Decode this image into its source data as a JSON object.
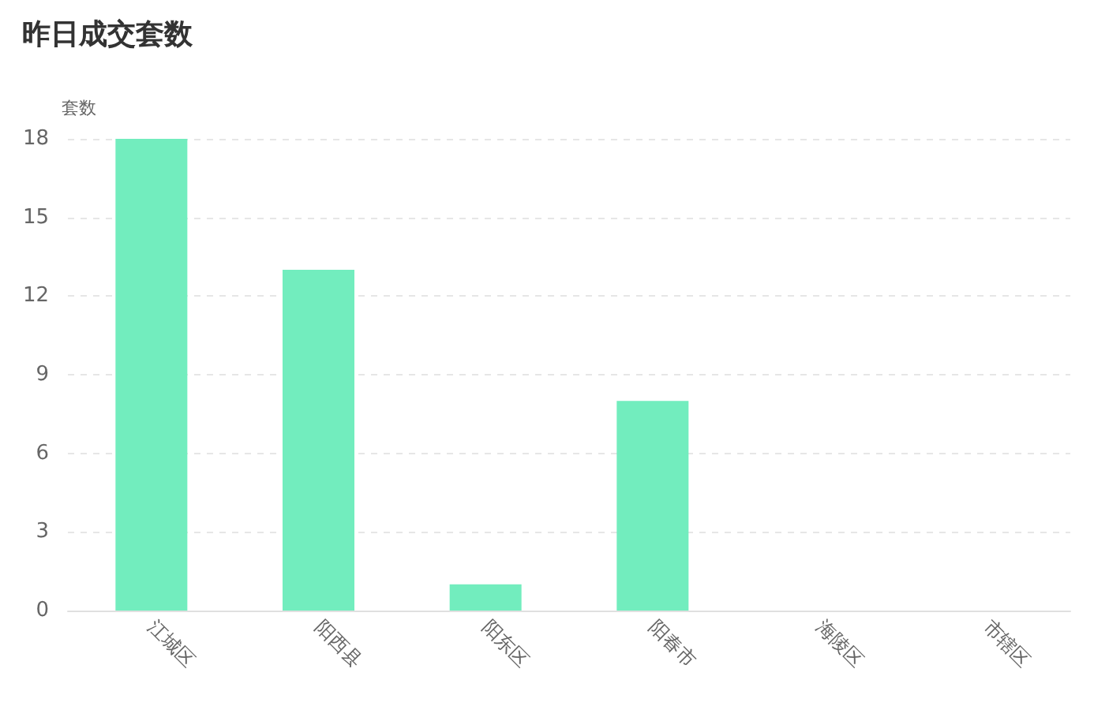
{
  "chart_data": {
    "type": "bar",
    "title": "昨日成交套数",
    "ylabel": "套数",
    "categories": [
      "江城区",
      "阳西县",
      "阳东区",
      "阳春市",
      "海陵区",
      "市辖区"
    ],
    "values": [
      18,
      13,
      1,
      8,
      0,
      0
    ],
    "color": "#72edbe",
    "ylim": [
      0,
      18
    ],
    "yticks": [
      0,
      3,
      6,
      9,
      12,
      15,
      18
    ],
    "grid": "y"
  }
}
